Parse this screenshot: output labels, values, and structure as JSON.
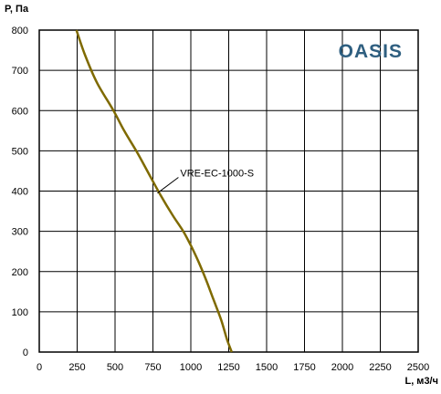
{
  "chart_data": {
    "type": "line",
    "brand": "OASIS",
    "xlabel": "L, м3/ч",
    "ylabel": "P, Па",
    "xlim": [
      0,
      2500
    ],
    "ylim": [
      0,
      800
    ],
    "xticks": [
      0,
      250,
      500,
      750,
      1000,
      1250,
      1500,
      1750,
      2000,
      2250,
      2500
    ],
    "yticks": [
      0,
      100,
      200,
      300,
      400,
      500,
      600,
      700,
      800
    ],
    "grid": true,
    "series": [
      {
        "name": "VRE-EC-1000-S",
        "color": "#7f6a00",
        "x": [
          245,
          300,
          380,
          490,
          560,
          640,
          720,
          800,
          880,
          950,
          1000,
          1050,
          1100,
          1150,
          1200,
          1240,
          1270
        ],
        "y": [
          800,
          740,
          670,
          600,
          550,
          500,
          445,
          390,
          340,
          300,
          265,
          225,
          180,
          130,
          80,
          30,
          0
        ]
      }
    ],
    "annotation": {
      "text": "VRE-EC-1000-S",
      "x": 780,
      "y": 395,
      "text_x": 900,
      "text_y": 425
    }
  }
}
